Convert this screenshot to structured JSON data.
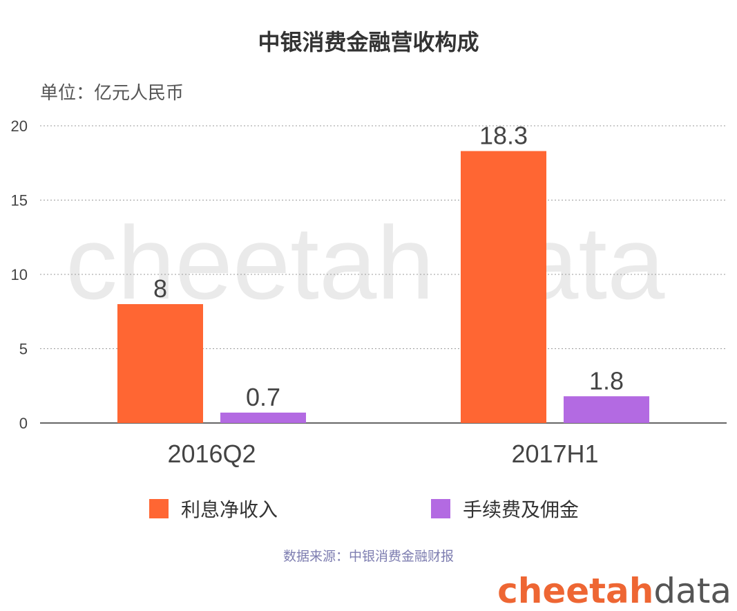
{
  "title": "中银消费金融营收构成",
  "unit_label": "单位：亿元人民币",
  "watermark": "cheetah data",
  "source": "数据来源：中银消费金融财报",
  "brand": {
    "part1": "cheetah",
    "part2": "data"
  },
  "chart_data": {
    "type": "bar",
    "categories": [
      "2016Q2",
      "2017H1"
    ],
    "series": [
      {
        "name": "利息净收入",
        "values": [
          8,
          18.3
        ],
        "labels": [
          "8",
          "18.3"
        ],
        "color": "#ff6633"
      },
      {
        "name": "手续费及佣金",
        "values": [
          0.7,
          1.8
        ],
        "labels": [
          "0.7",
          "1.8"
        ],
        "color": "#b36ae2"
      }
    ],
    "ylim": [
      0,
      20
    ],
    "yticks": [
      0,
      5,
      10,
      15,
      20
    ],
    "grid": true,
    "legend": "bottom"
  }
}
